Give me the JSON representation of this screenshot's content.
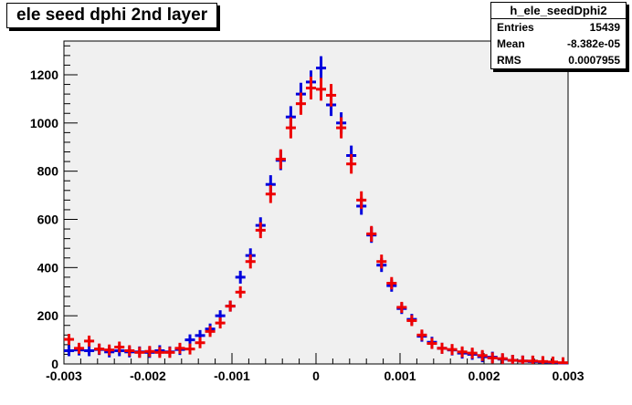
{
  "title": "ele seed dphi 2nd layer",
  "stats": {
    "name": "h_ele_seedDphi2",
    "rows": [
      {
        "label": "Entries",
        "value": "15439"
      },
      {
        "label": "Mean",
        "value": "-8.382e-05"
      },
      {
        "label": "RMS",
        "value": "0.0007955"
      }
    ]
  },
  "colors": {
    "series_blue": "#0000dd",
    "series_red": "#ee0000",
    "frame_bg": "#f0f0f0"
  },
  "chart_data": {
    "type": "scatter",
    "title": "ele seed dphi 2nd layer",
    "xlabel": "",
    "ylabel": "",
    "xlim": [
      -0.003,
      0.003
    ],
    "ylim": [
      0,
      1340
    ],
    "grid": false,
    "x_ticks": [
      "-0.003",
      "-0.002",
      "-0.001",
      "0",
      "0.001",
      "0.002",
      "0.003"
    ],
    "y_ticks": [
      "0",
      "200",
      "400",
      "600",
      "800",
      "1000",
      "1200"
    ],
    "bin_width": 0.00012,
    "series": [
      {
        "color": "blue",
        "points": [
          [
            -0.00294,
            55
          ],
          [
            -0.00282,
            58
          ],
          [
            -0.0027,
            55
          ],
          [
            -0.00258,
            60
          ],
          [
            -0.00246,
            50
          ],
          [
            -0.00234,
            55
          ],
          [
            -0.00222,
            50
          ],
          [
            -0.0021,
            50
          ],
          [
            -0.00198,
            48
          ],
          [
            -0.00186,
            55
          ],
          [
            -0.00174,
            50
          ],
          [
            -0.00162,
            60
          ],
          [
            -0.0015,
            100
          ],
          [
            -0.00138,
            118
          ],
          [
            -0.00126,
            145
          ],
          [
            -0.00114,
            200
          ],
          [
            -0.00102,
            240
          ],
          [
            -0.0009,
            360
          ],
          [
            -0.00078,
            450
          ],
          [
            -0.00066,
            575
          ],
          [
            -0.00054,
            745
          ],
          [
            -0.00042,
            845
          ],
          [
            -0.0003,
            1025
          ],
          [
            -0.00018,
            1120
          ],
          [
            -6e-05,
            1170
          ],
          [
            6e-05,
            1228
          ],
          [
            0.00018,
            1075
          ],
          [
            0.0003,
            1000
          ],
          [
            0.00042,
            865
          ],
          [
            0.00054,
            655
          ],
          [
            0.00066,
            535
          ],
          [
            0.00078,
            410
          ],
          [
            0.0009,
            325
          ],
          [
            0.00102,
            230
          ],
          [
            0.00114,
            185
          ],
          [
            0.00126,
            115
          ],
          [
            0.00138,
            90
          ],
          [
            0.0015,
            65
          ],
          [
            0.00162,
            58
          ],
          [
            0.00174,
            45
          ],
          [
            0.00186,
            40
          ],
          [
            0.00198,
            30
          ],
          [
            0.0021,
            28
          ],
          [
            0.00222,
            20
          ],
          [
            0.00234,
            15
          ],
          [
            0.00246,
            12
          ],
          [
            0.00258,
            10
          ],
          [
            0.0027,
            8
          ],
          [
            0.00282,
            6
          ],
          [
            0.00294,
            4
          ]
        ]
      },
      {
        "color": "red",
        "points": [
          [
            -0.00294,
            102
          ],
          [
            -0.00282,
            65
          ],
          [
            -0.0027,
            95
          ],
          [
            -0.00258,
            62
          ],
          [
            -0.00246,
            58
          ],
          [
            -0.00234,
            70
          ],
          [
            -0.00222,
            55
          ],
          [
            -0.0021,
            48
          ],
          [
            -0.00198,
            52
          ],
          [
            -0.00186,
            48
          ],
          [
            -0.00174,
            48
          ],
          [
            -0.00162,
            65
          ],
          [
            -0.0015,
            62
          ],
          [
            -0.00138,
            88
          ],
          [
            -0.00126,
            135
          ],
          [
            -0.00114,
            170
          ],
          [
            -0.00102,
            240
          ],
          [
            -0.0009,
            298
          ],
          [
            -0.00078,
            425
          ],
          [
            -0.00066,
            555
          ],
          [
            -0.00054,
            705
          ],
          [
            -0.00042,
            850
          ],
          [
            -0.0003,
            980
          ],
          [
            -0.00018,
            1080
          ],
          [
            -6e-05,
            1145
          ],
          [
            6e-05,
            1140
          ],
          [
            0.00018,
            1115
          ],
          [
            0.0003,
            980
          ],
          [
            0.00042,
            830
          ],
          [
            0.00054,
            680
          ],
          [
            0.00066,
            540
          ],
          [
            0.00078,
            425
          ],
          [
            0.0009,
            335
          ],
          [
            0.00102,
            235
          ],
          [
            0.00114,
            180
          ],
          [
            0.00126,
            120
          ],
          [
            0.00138,
            85
          ],
          [
            0.0015,
            65
          ],
          [
            0.00162,
            60
          ],
          [
            0.00174,
            50
          ],
          [
            0.00186,
            45
          ],
          [
            0.00198,
            35
          ],
          [
            0.0021,
            25
          ],
          [
            0.00222,
            22
          ],
          [
            0.00234,
            15
          ],
          [
            0.00246,
            12
          ],
          [
            0.00258,
            12
          ],
          [
            0.0027,
            10
          ],
          [
            0.00282,
            8
          ],
          [
            0.00294,
            5
          ]
        ]
      }
    ]
  }
}
